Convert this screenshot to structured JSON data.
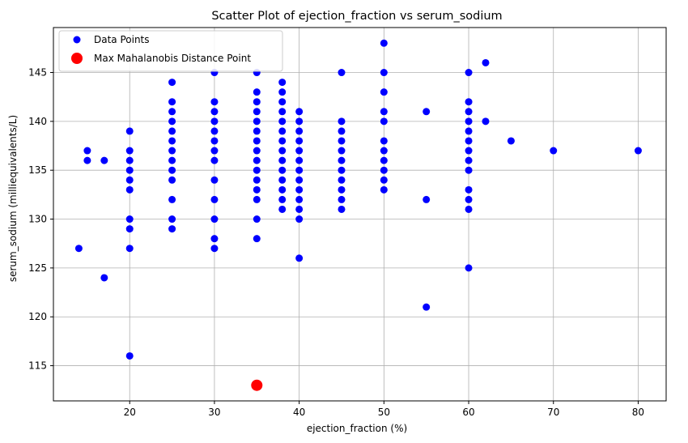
{
  "chart_data": {
    "type": "scatter",
    "title": "Scatter Plot of ejection_fraction vs serum_sodium",
    "xlabel": "ejection_fraction (%)",
    "ylabel": "serum_sodium (milliequivalents/L)",
    "xlim": [
      11,
      83.3
    ],
    "ylim": [
      111.4,
      149.6
    ],
    "x_ticks": [
      20,
      30,
      40,
      50,
      60,
      70,
      80
    ],
    "y_ticks": [
      115,
      120,
      125,
      130,
      135,
      140,
      145
    ],
    "grid": true,
    "legend_position": "top-left",
    "series": [
      {
        "name": "Data Points",
        "color": "#0000ff",
        "points": [
          [
            14,
            127
          ],
          [
            15,
            137
          ],
          [
            15,
            136
          ],
          [
            17,
            136
          ],
          [
            17,
            124
          ],
          [
            20,
            139
          ],
          [
            20,
            137
          ],
          [
            20,
            136
          ],
          [
            20,
            135
          ],
          [
            20,
            134
          ],
          [
            20,
            133
          ],
          [
            20,
            130
          ],
          [
            20,
            129
          ],
          [
            20,
            127
          ],
          [
            20,
            116
          ],
          [
            25,
            144
          ],
          [
            25,
            142
          ],
          [
            25,
            141
          ],
          [
            25,
            140
          ],
          [
            25,
            139
          ],
          [
            25,
            138
          ],
          [
            25,
            137
          ],
          [
            25,
            136
          ],
          [
            25,
            135
          ],
          [
            25,
            134
          ],
          [
            25,
            132
          ],
          [
            25,
            130
          ],
          [
            25,
            129
          ],
          [
            30,
            145
          ],
          [
            30,
            142
          ],
          [
            30,
            141
          ],
          [
            30,
            140
          ],
          [
            30,
            139
          ],
          [
            30,
            138
          ],
          [
            30,
            137
          ],
          [
            30,
            136
          ],
          [
            30,
            134
          ],
          [
            30,
            132
          ],
          [
            30,
            130
          ],
          [
            30,
            128
          ],
          [
            30,
            127
          ],
          [
            35,
            145
          ],
          [
            35,
            143
          ],
          [
            35,
            142
          ],
          [
            35,
            141
          ],
          [
            35,
            140
          ],
          [
            35,
            139
          ],
          [
            35,
            138
          ],
          [
            35,
            137
          ],
          [
            35,
            136
          ],
          [
            35,
            135
          ],
          [
            35,
            134
          ],
          [
            35,
            133
          ],
          [
            35,
            132
          ],
          [
            35,
            130
          ],
          [
            35,
            128
          ],
          [
            38,
            144
          ],
          [
            38,
            143
          ],
          [
            38,
            142
          ],
          [
            38,
            141
          ],
          [
            38,
            140
          ],
          [
            38,
            139
          ],
          [
            38,
            138
          ],
          [
            38,
            137
          ],
          [
            38,
            136
          ],
          [
            38,
            135
          ],
          [
            38,
            134
          ],
          [
            38,
            133
          ],
          [
            38,
            132
          ],
          [
            38,
            131
          ],
          [
            40,
            141
          ],
          [
            40,
            140
          ],
          [
            40,
            139
          ],
          [
            40,
            138
          ],
          [
            40,
            137
          ],
          [
            40,
            136
          ],
          [
            40,
            135
          ],
          [
            40,
            134
          ],
          [
            40,
            133
          ],
          [
            40,
            132
          ],
          [
            40,
            131
          ],
          [
            40,
            130
          ],
          [
            40,
            126
          ],
          [
            45,
            145
          ],
          [
            45,
            140
          ],
          [
            45,
            139
          ],
          [
            45,
            138
          ],
          [
            45,
            137
          ],
          [
            45,
            136
          ],
          [
            45,
            135
          ],
          [
            45,
            134
          ],
          [
            45,
            133
          ],
          [
            45,
            132
          ],
          [
            45,
            131
          ],
          [
            50,
            148
          ],
          [
            50,
            145
          ],
          [
            50,
            143
          ],
          [
            50,
            141
          ],
          [
            50,
            140
          ],
          [
            50,
            138
          ],
          [
            50,
            137
          ],
          [
            50,
            136
          ],
          [
            50,
            135
          ],
          [
            50,
            134
          ],
          [
            50,
            133
          ],
          [
            55,
            141
          ],
          [
            55,
            132
          ],
          [
            55,
            121
          ],
          [
            60,
            145
          ],
          [
            60,
            142
          ],
          [
            60,
            141
          ],
          [
            60,
            140
          ],
          [
            60,
            139
          ],
          [
            60,
            138
          ],
          [
            60,
            137
          ],
          [
            60,
            136
          ],
          [
            60,
            135
          ],
          [
            60,
            133
          ],
          [
            60,
            132
          ],
          [
            60,
            131
          ],
          [
            60,
            125
          ],
          [
            62,
            146
          ],
          [
            62,
            140
          ],
          [
            65,
            138
          ],
          [
            70,
            137
          ],
          [
            80,
            137
          ]
        ]
      },
      {
        "name": "Max Mahalanobis Distance Point",
        "color": "#ff0000",
        "points": [
          [
            35,
            113
          ]
        ]
      }
    ]
  }
}
